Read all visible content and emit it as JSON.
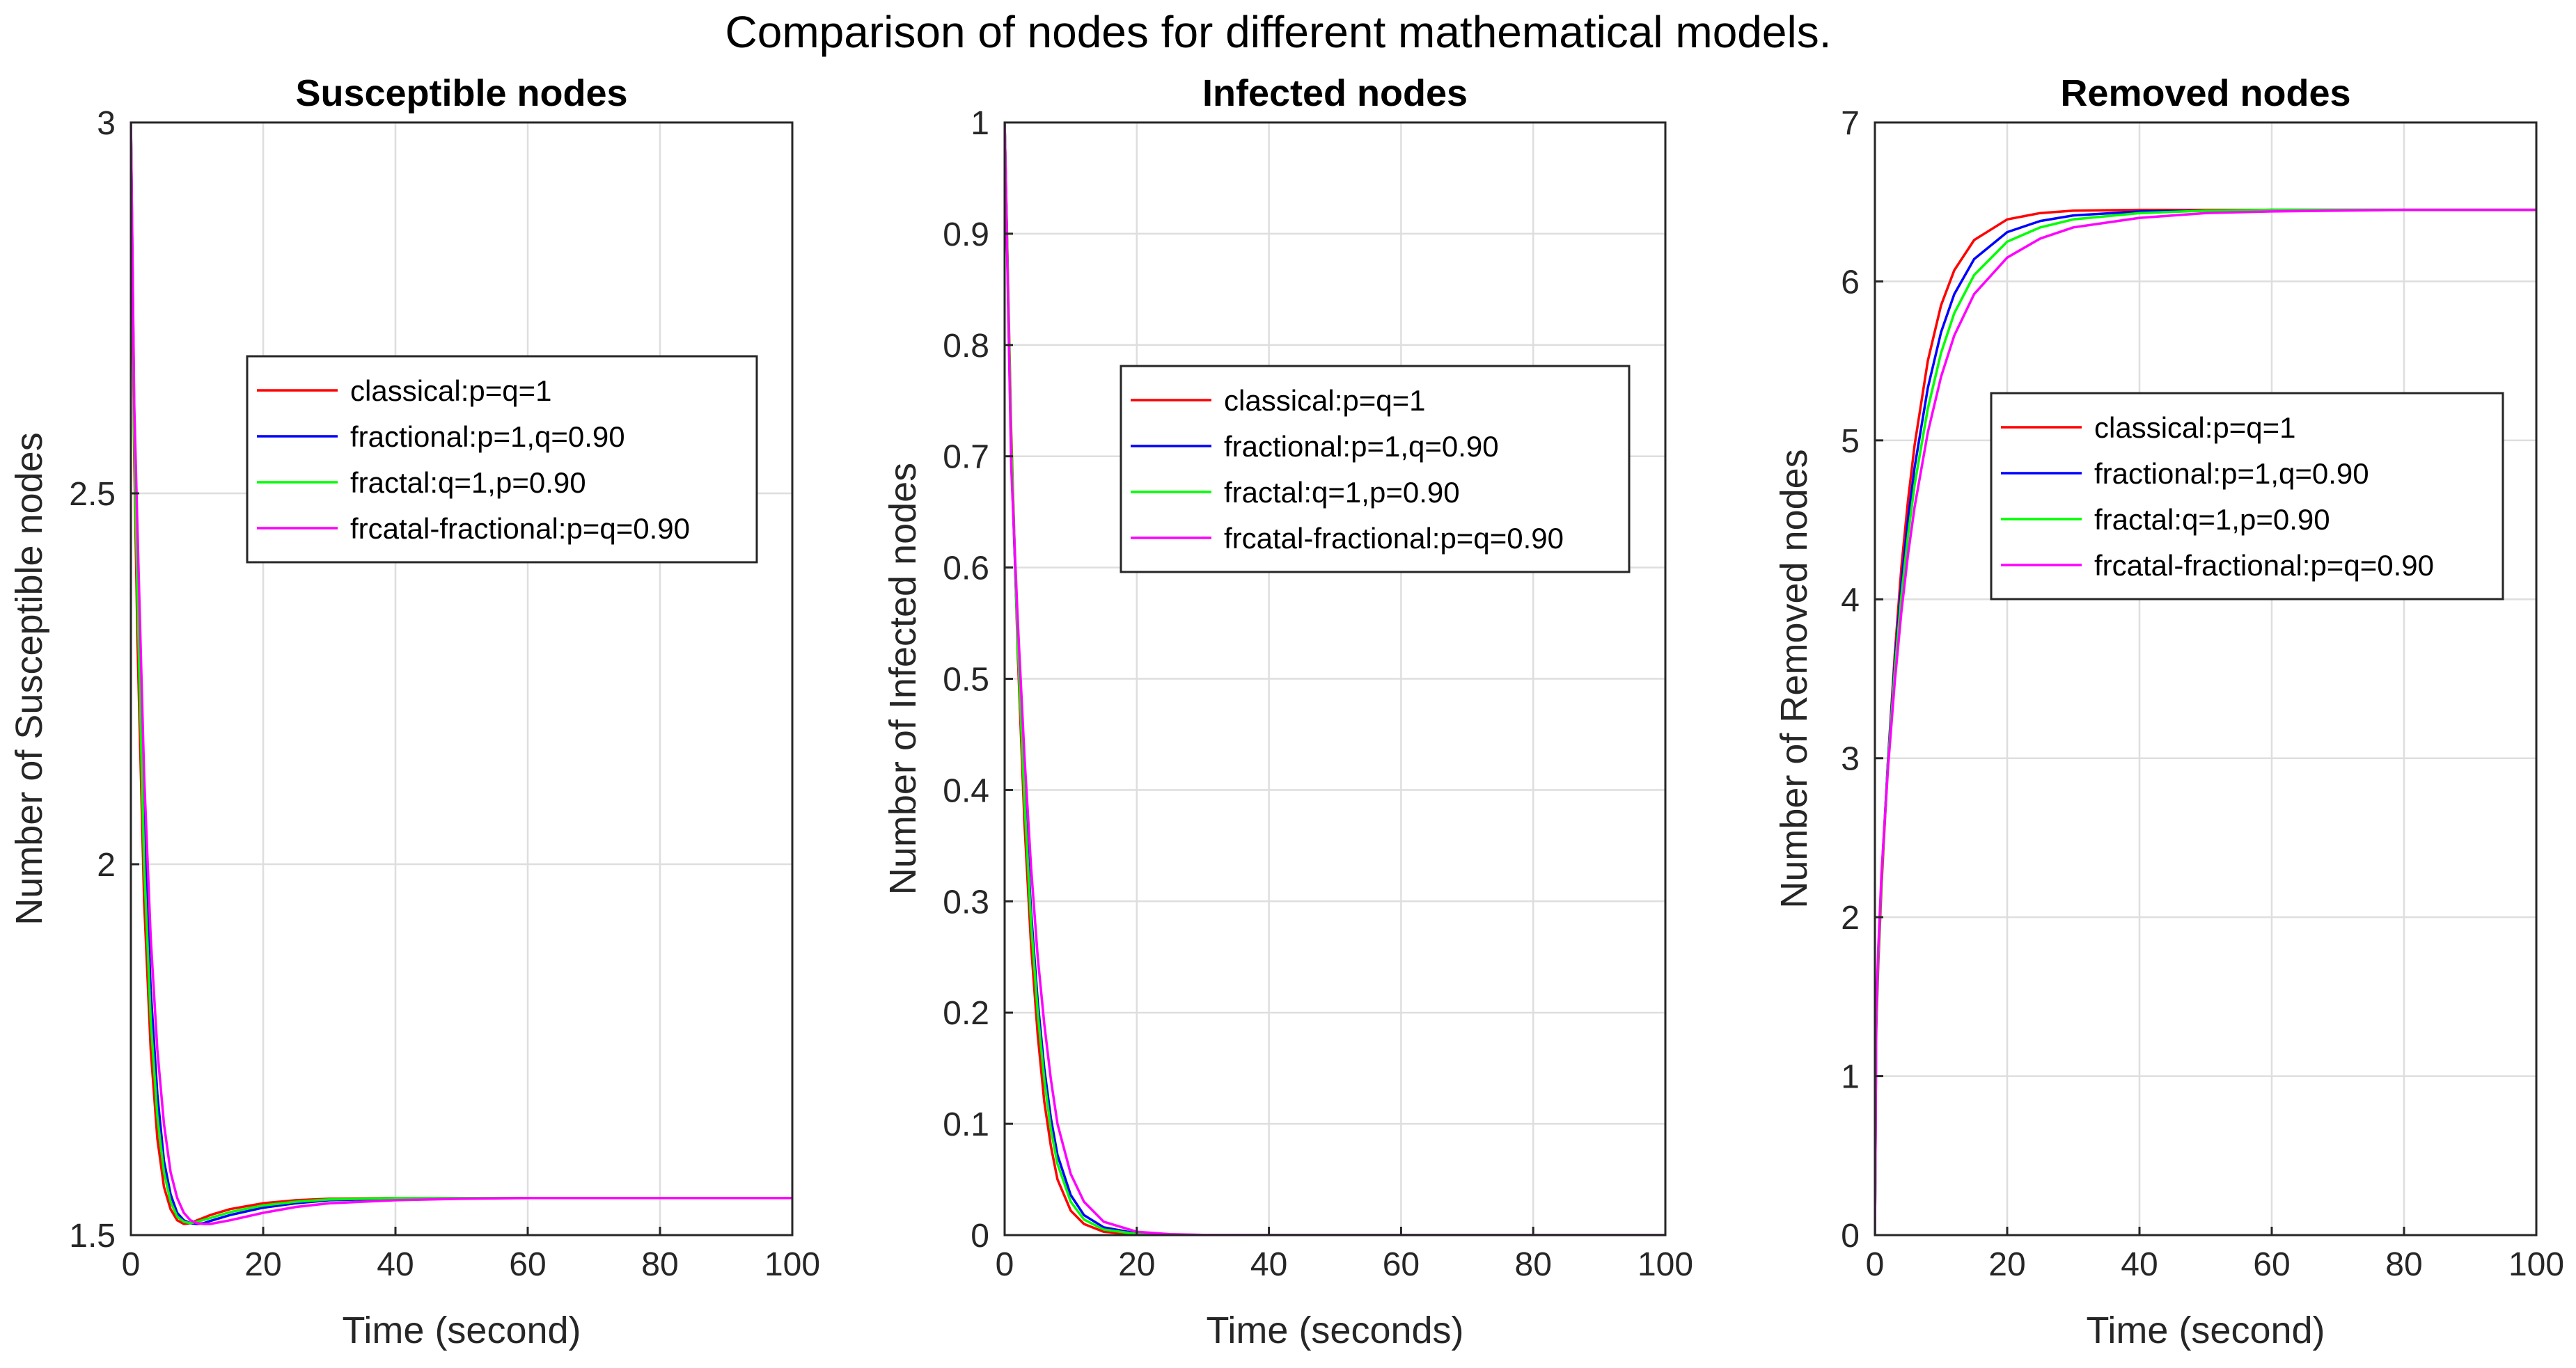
{
  "figure": {
    "title": "Comparison of nodes for different mathematical models."
  },
  "colors": {
    "classical": "#ff0000",
    "fractional": "#0000ff",
    "fractal": "#00ff00",
    "fractal_fractional": "#ff00ff"
  },
  "chart_data": [
    {
      "type": "line",
      "title": "Susceptible nodes",
      "xlabel": "Time (second)",
      "ylabel": "Number of Susceptible nodes",
      "xlim": [
        0,
        100
      ],
      "ylim": [
        1.5,
        3
      ],
      "xticks": [
        0,
        20,
        40,
        60,
        80,
        100
      ],
      "xtick_labels": [
        "0",
        "20",
        "40",
        "60",
        "80",
        "100"
      ],
      "yticks": [
        1.5,
        2,
        2.5,
        3
      ],
      "ytick_labels": [
        "1.5",
        "2",
        "2.5",
        "3"
      ],
      "grid": true,
      "legend_position": "upper-center",
      "series": [
        {
          "name": "classical:p=q=1",
          "color": "#ff0000",
          "x": [
            0,
            0.5,
            1,
            2,
            3,
            4,
            5,
            6,
            7,
            8,
            9,
            10,
            12,
            15,
            20,
            25,
            30,
            40,
            50,
            60,
            80,
            100
          ],
          "y": [
            3.0,
            2.55,
            2.3,
            1.95,
            1.75,
            1.63,
            1.565,
            1.535,
            1.52,
            1.515,
            1.516,
            1.52,
            1.527,
            1.535,
            1.543,
            1.547,
            1.549,
            1.55,
            1.55,
            1.55,
            1.55,
            1.55
          ]
        },
        {
          "name": "fractional:p=1,q=0.90",
          "color": "#0000ff",
          "x": [
            0,
            0.5,
            1,
            2,
            3,
            4,
            5,
            6,
            7,
            8,
            9,
            10,
            11,
            12,
            15,
            20,
            25,
            30,
            40,
            50,
            60,
            80,
            100
          ],
          "y": [
            3.0,
            2.6,
            2.4,
            2.05,
            1.83,
            1.69,
            1.6,
            1.555,
            1.53,
            1.52,
            1.516,
            1.515,
            1.516,
            1.519,
            1.527,
            1.537,
            1.543,
            1.547,
            1.549,
            1.55,
            1.55,
            1.55,
            1.55
          ]
        },
        {
          "name": "fractal:q=1,p=0.90",
          "color": "#00ff00",
          "x": [
            0,
            0.5,
            1,
            2,
            3,
            4,
            5,
            6,
            7,
            8,
            9,
            10,
            12,
            15,
            20,
            25,
            30,
            40,
            50,
            60,
            80,
            100
          ],
          "y": [
            3.0,
            2.58,
            2.36,
            2.0,
            1.79,
            1.66,
            1.585,
            1.545,
            1.525,
            1.518,
            1.516,
            1.518,
            1.523,
            1.531,
            1.54,
            1.545,
            1.548,
            1.55,
            1.55,
            1.55,
            1.55,
            1.55
          ]
        },
        {
          "name": "frcatal-fractional:p=q=0.90",
          "color": "#ff00ff",
          "x": [
            0,
            0.5,
            1,
            2,
            3,
            4,
            5,
            6,
            7,
            8,
            9,
            10,
            11,
            12,
            15,
            20,
            25,
            30,
            40,
            50,
            60,
            80,
            100
          ],
          "y": [
            3.0,
            2.62,
            2.45,
            2.12,
            1.9,
            1.75,
            1.65,
            1.585,
            1.55,
            1.53,
            1.52,
            1.516,
            1.515,
            1.515,
            1.52,
            1.53,
            1.538,
            1.543,
            1.547,
            1.549,
            1.55,
            1.55,
            1.55
          ]
        }
      ]
    },
    {
      "type": "line",
      "title": "Infected nodes",
      "xlabel": "Time (seconds)",
      "ylabel": "Number of Infected nodes",
      "xlim": [
        0,
        100
      ],
      "ylim": [
        0,
        1
      ],
      "xticks": [
        0,
        20,
        40,
        60,
        80,
        100
      ],
      "xtick_labels": [
        "0",
        "20",
        "40",
        "60",
        "80",
        "100"
      ],
      "yticks": [
        0,
        0.1,
        0.2,
        0.3,
        0.4,
        0.5,
        0.6,
        0.7,
        0.8,
        0.9,
        1
      ],
      "ytick_labels": [
        "0",
        "0.1",
        "0.2",
        "0.3",
        "0.4",
        "0.5",
        "0.6",
        "0.7",
        "0.8",
        "0.9",
        "1"
      ],
      "grid": true,
      "legend_position": "upper-center",
      "series": [
        {
          "name": "classical:p=q=1",
          "color": "#ff0000",
          "x": [
            0,
            1,
            2,
            3,
            4,
            5,
            6,
            7,
            8,
            10,
            12,
            15,
            20,
            25,
            30,
            40,
            60,
            80,
            100
          ],
          "y": [
            1.0,
            0.72,
            0.52,
            0.37,
            0.26,
            0.18,
            0.12,
            0.08,
            0.05,
            0.022,
            0.01,
            0.003,
            0.0005,
            0.0001,
            0,
            0,
            0,
            0,
            0
          ]
        },
        {
          "name": "fractional:p=1,q=0.90",
          "color": "#0000ff",
          "x": [
            0,
            1,
            2,
            3,
            4,
            5,
            6,
            7,
            8,
            10,
            12,
            15,
            20,
            25,
            30,
            40,
            60,
            80,
            100
          ],
          "y": [
            1.0,
            0.7,
            0.53,
            0.4,
            0.29,
            0.21,
            0.15,
            0.105,
            0.072,
            0.036,
            0.018,
            0.007,
            0.0015,
            0.0003,
            0.0001,
            0,
            0,
            0,
            0
          ]
        },
        {
          "name": "fractal:q=1,p=0.90",
          "color": "#00ff00",
          "x": [
            0,
            1,
            2,
            3,
            4,
            5,
            6,
            7,
            8,
            10,
            12,
            15,
            20,
            25,
            30,
            40,
            60,
            80,
            100
          ],
          "y": [
            1.0,
            0.71,
            0.53,
            0.39,
            0.28,
            0.2,
            0.14,
            0.095,
            0.064,
            0.03,
            0.014,
            0.005,
            0.001,
            0.0002,
            0,
            0,
            0,
            0,
            0
          ]
        },
        {
          "name": "frcatal-fractional:p=q=0.90",
          "color": "#ff00ff",
          "x": [
            0,
            1,
            2,
            3,
            4,
            5,
            6,
            7,
            8,
            10,
            12,
            15,
            20,
            25,
            30,
            35,
            40,
            60,
            80,
            100
          ],
          "y": [
            1.0,
            0.69,
            0.55,
            0.43,
            0.33,
            0.25,
            0.19,
            0.14,
            0.1,
            0.055,
            0.03,
            0.012,
            0.003,
            0.0008,
            0.0002,
            5e-05,
            0,
            0,
            0,
            0
          ]
        }
      ]
    },
    {
      "type": "line",
      "title": "Removed nodes",
      "xlabel": "Time (second)",
      "ylabel": "Number of Removed nodes",
      "xlim": [
        0,
        100
      ],
      "ylim": [
        0,
        7
      ],
      "xticks": [
        0,
        20,
        40,
        60,
        80,
        100
      ],
      "xtick_labels": [
        "0",
        "20",
        "40",
        "60",
        "80",
        "100"
      ],
      "yticks": [
        0,
        1,
        2,
        3,
        4,
        5,
        6,
        7
      ],
      "ytick_labels": [
        "0",
        "1",
        "2",
        "3",
        "4",
        "5",
        "6",
        "7"
      ],
      "grid": true,
      "legend_position": "upper-center",
      "series": [
        {
          "name": "classical:p=q=1",
          "color": "#ff0000",
          "x": [
            0,
            0.2,
            0.5,
            1,
            2,
            3,
            4,
            5,
            6,
            8,
            10,
            12,
            15,
            20,
            25,
            30,
            40,
            50,
            60,
            80,
            100
          ],
          "y": [
            0,
            1.3,
            1.7,
            2.2,
            3.0,
            3.65,
            4.2,
            4.62,
            4.97,
            5.5,
            5.85,
            6.07,
            6.26,
            6.39,
            6.43,
            6.445,
            6.45,
            6.45,
            6.45,
            6.45,
            6.45
          ]
        },
        {
          "name": "fractional:p=1,q=0.90",
          "color": "#0000ff",
          "x": [
            0,
            0.2,
            0.5,
            1,
            2,
            3,
            4,
            5,
            6,
            8,
            10,
            12,
            15,
            20,
            25,
            30,
            40,
            50,
            60,
            80,
            100
          ],
          "y": [
            0,
            1.35,
            1.75,
            2.25,
            3.0,
            3.6,
            4.1,
            4.5,
            4.83,
            5.33,
            5.68,
            5.92,
            6.14,
            6.31,
            6.38,
            6.415,
            6.44,
            6.445,
            6.45,
            6.45,
            6.45
          ]
        },
        {
          "name": "fractal:q=1,p=0.90",
          "color": "#00ff00",
          "x": [
            0,
            0.2,
            0.5,
            1,
            2,
            3,
            4,
            5,
            6,
            8,
            10,
            12,
            15,
            20,
            25,
            30,
            40,
            50,
            60,
            80,
            100
          ],
          "y": [
            0,
            1.35,
            1.75,
            2.25,
            2.98,
            3.55,
            4.02,
            4.4,
            4.72,
            5.2,
            5.55,
            5.8,
            6.04,
            6.25,
            6.34,
            6.39,
            6.43,
            6.445,
            6.45,
            6.45,
            6.45
          ]
        },
        {
          "name": "frcatal-fractional:p=q=0.90",
          "color": "#ff00ff",
          "x": [
            0,
            0.2,
            0.5,
            1,
            2,
            3,
            4,
            5,
            6,
            8,
            10,
            12,
            15,
            20,
            25,
            30,
            40,
            50,
            60,
            80,
            100
          ],
          "y": [
            0,
            1.4,
            1.8,
            2.28,
            2.95,
            3.48,
            3.92,
            4.28,
            4.58,
            5.05,
            5.4,
            5.66,
            5.92,
            6.15,
            6.27,
            6.34,
            6.4,
            6.43,
            6.44,
            6.45,
            6.45
          ]
        }
      ]
    }
  ]
}
